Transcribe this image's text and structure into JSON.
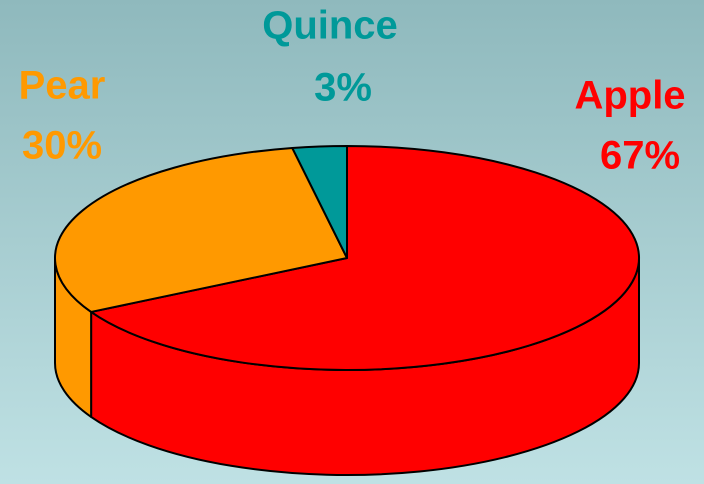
{
  "chart_data": {
    "type": "pie3d",
    "categories": [
      "Apple",
      "Pear",
      "Quince"
    ],
    "values": [
      67,
      30,
      3
    ],
    "value_labels": [
      "67%",
      "30%",
      "3%"
    ],
    "colors": [
      "#ff0000",
      "#ff9900",
      "#009999"
    ]
  }
}
